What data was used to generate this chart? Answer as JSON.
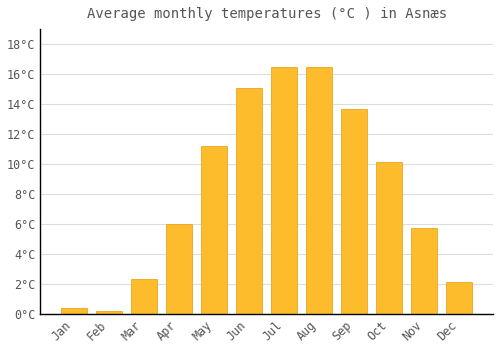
{
  "title": "Average monthly temperatures (°C ) in Asnæs",
  "months": [
    "Jan",
    "Feb",
    "Mar",
    "Apr",
    "May",
    "Jun",
    "Jul",
    "Aug",
    "Sep",
    "Oct",
    "Nov",
    "Dec"
  ],
  "values": [
    0.4,
    0.2,
    2.3,
    6.0,
    11.2,
    15.1,
    16.5,
    16.5,
    13.7,
    10.1,
    5.7,
    2.1
  ],
  "bar_color": "#FDBC2C",
  "bar_edge_color": "#E8A820",
  "background_color": "#FFFFFF",
  "grid_color": "#DDDDDD",
  "text_color": "#555555",
  "ylim": [
    0,
    19
  ],
  "yticks": [
    0,
    2,
    4,
    6,
    8,
    10,
    12,
    14,
    16,
    18
  ],
  "title_fontsize": 10,
  "tick_fontsize": 8.5,
  "font_family": "monospace"
}
